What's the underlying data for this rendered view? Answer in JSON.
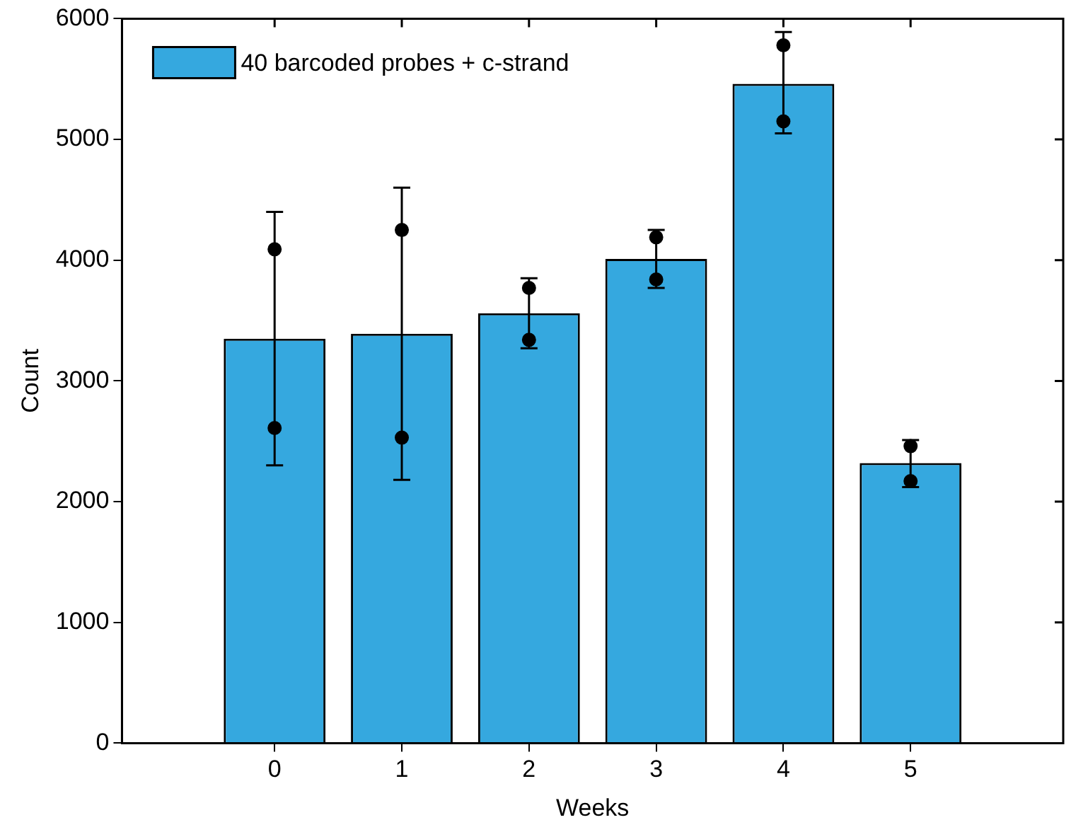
{
  "chart_data": {
    "type": "bar",
    "xlabel": "Weeks",
    "ylabel": "Count",
    "x": [
      0,
      1,
      2,
      3,
      4,
      5
    ],
    "xlim": [
      -1.2,
      6.2
    ],
    "xticks": [
      0,
      1,
      2,
      3,
      4,
      5
    ],
    "ylim": [
      0,
      6000
    ],
    "yticks": [
      0,
      1000,
      2000,
      3000,
      4000,
      5000,
      6000
    ],
    "legend": "top left",
    "grid": false,
    "series": [
      {
        "name": "40 barcoded probes + c-strand",
        "color": "#35a8df",
        "values": [
          3350,
          3390,
          3560,
          4010,
          5460,
          2320
        ],
        "errors": [
          [
            2300,
            4400
          ],
          [
            2180,
            4600
          ],
          [
            3270,
            3850
          ],
          [
            3770,
            4250
          ],
          [
            5050,
            5890
          ],
          [
            2120,
            2510
          ]
        ]
      },
      {
        "type": "scatter",
        "color": "#000000",
        "marker": "circle",
        "x": [
          0,
          1,
          2,
          3,
          4,
          5
        ],
        "values": [
          4090,
          4250,
          3770,
          4190,
          5780,
          2460
        ]
      },
      {
        "type": "scatter",
        "color": "#000000",
        "marker": "circle",
        "x": [
          0,
          1,
          2,
          3,
          4,
          5
        ],
        "values": [
          2610,
          2530,
          3340,
          3840,
          5150,
          2170
        ]
      }
    ]
  }
}
